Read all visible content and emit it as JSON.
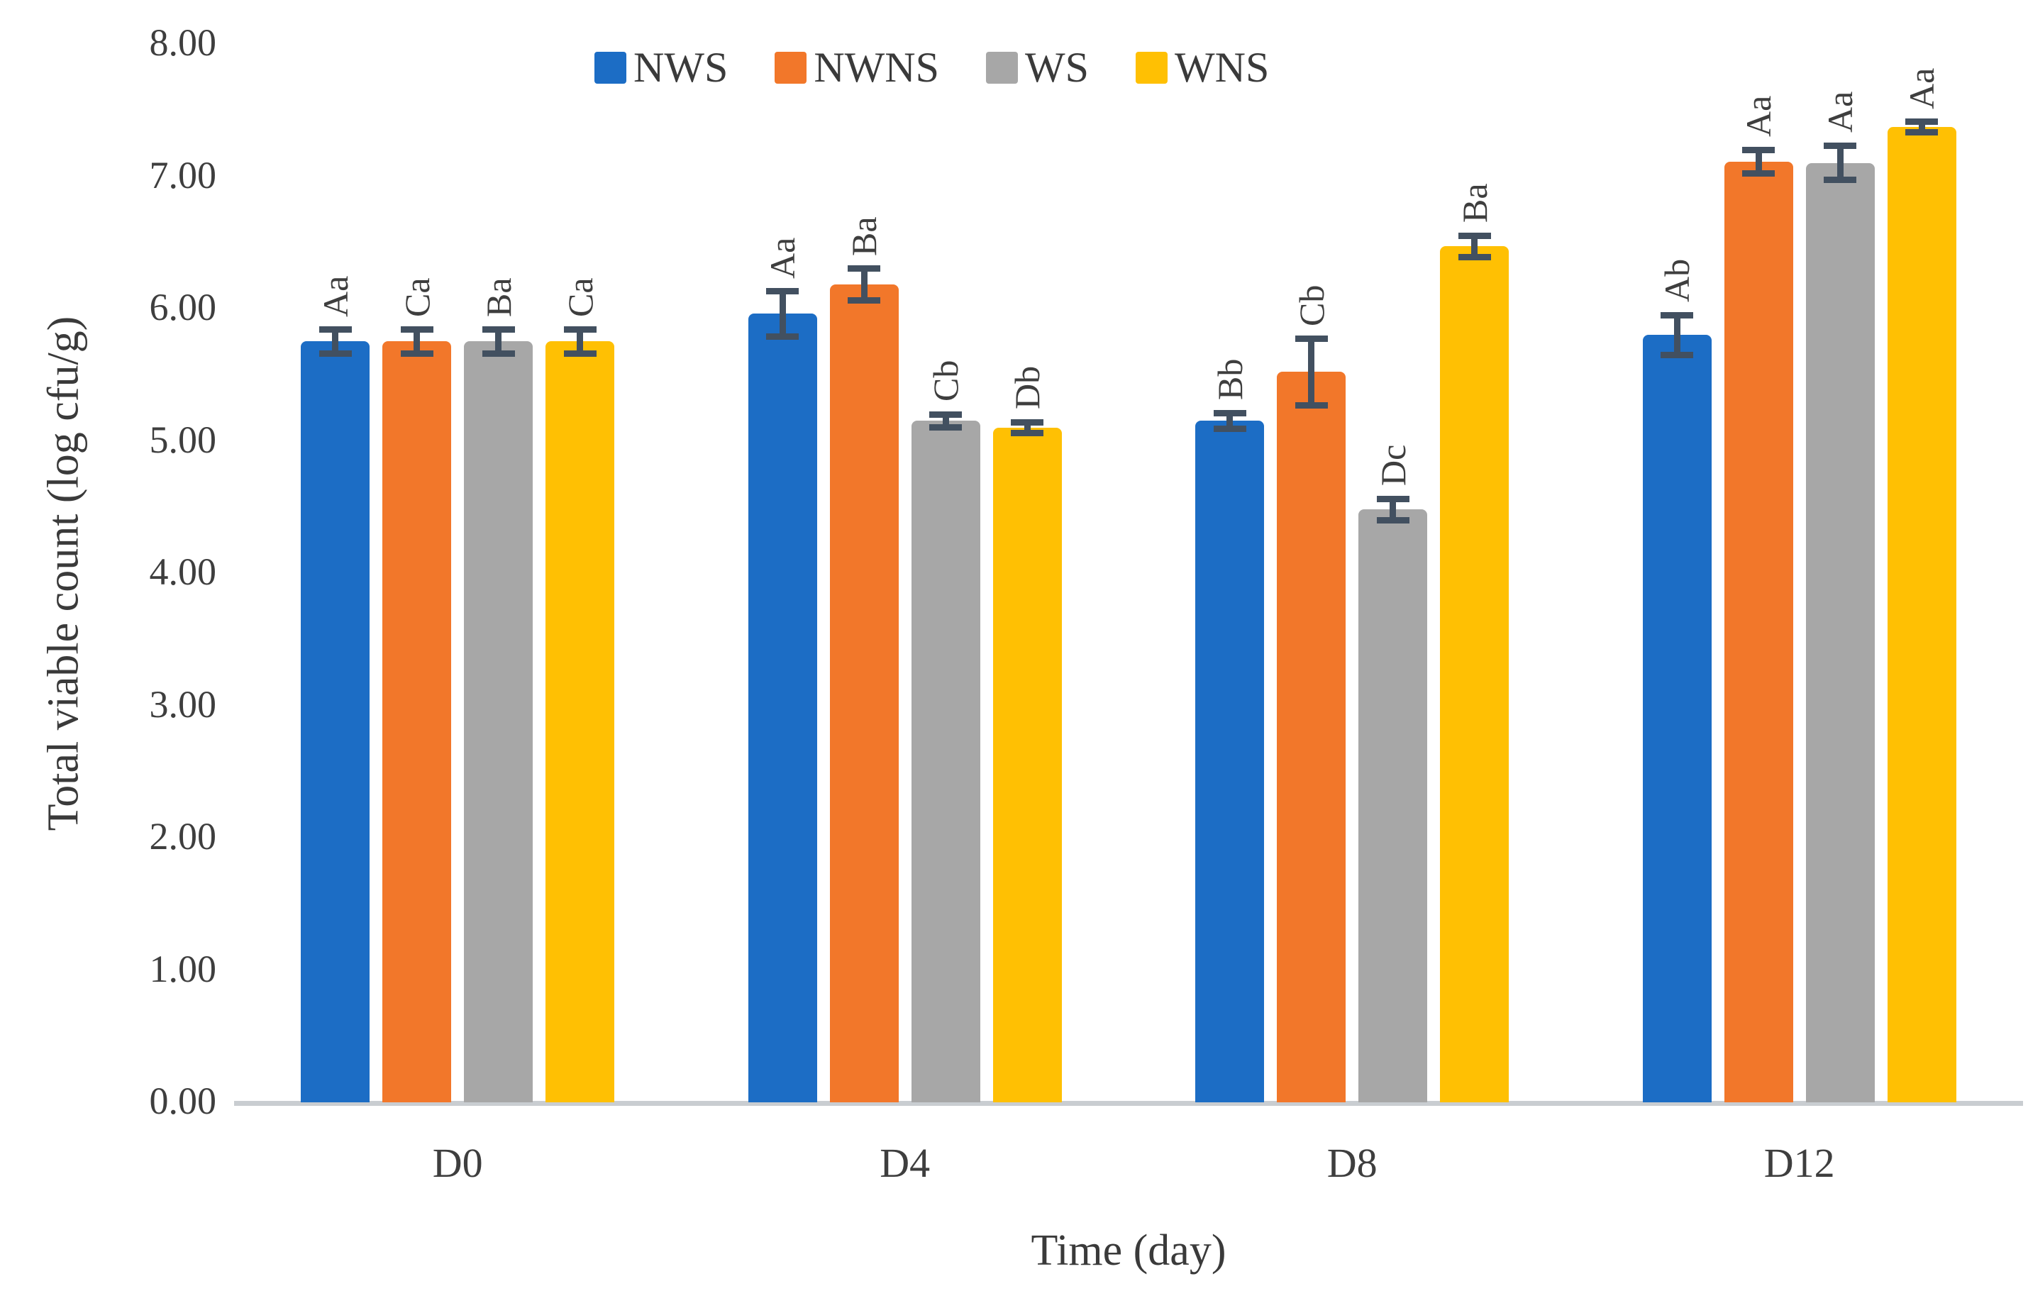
{
  "chart_data": {
    "type": "bar",
    "title": "",
    "xlabel": "Time (day)",
    "ylabel": "Total viable count (log cfu/g)",
    "ylim": [
      0,
      8
    ],
    "ytick_step": 1,
    "ytick_labels": [
      "0.00",
      "1.00",
      "2.00",
      "3.00",
      "4.00",
      "5.00",
      "6.00",
      "7.00",
      "8.00"
    ],
    "grid": false,
    "legend_position": "top",
    "categories": [
      "D0",
      "D4",
      "D8",
      "D12"
    ],
    "series": [
      {
        "name": "NWS",
        "color": "#1c6dc5",
        "values": [
          5.74,
          5.95,
          5.14,
          5.79
        ],
        "errors": [
          0.09,
          0.17,
          0.06,
          0.15
        ],
        "letters": [
          "Aa",
          "Aa",
          "Bb",
          "Ab"
        ]
      },
      {
        "name": "NWNS",
        "color": "#f2772a",
        "values": [
          5.74,
          6.17,
          5.51,
          7.1
        ],
        "errors": [
          0.09,
          0.12,
          0.25,
          0.09
        ],
        "letters": [
          "Ca",
          "Ba",
          "Cb",
          "Aa"
        ]
      },
      {
        "name": "WS",
        "color": "#a7a7a7",
        "values": [
          5.74,
          5.14,
          4.47,
          7.09
        ],
        "errors": [
          0.09,
          0.05,
          0.08,
          0.13
        ],
        "letters": [
          "Ba",
          "Cb",
          "Dc",
          "Aa"
        ]
      },
      {
        "name": "WNS",
        "color": "#ffc003",
        "values": [
          5.74,
          5.09,
          6.46,
          7.36
        ],
        "errors": [
          0.09,
          0.04,
          0.08,
          0.04
        ],
        "letters": [
          "Ca",
          "Db",
          "Ba",
          "Aa"
        ]
      }
    ],
    "error_bar_color": "#425060",
    "axis_line_color": "#c9cdd1"
  }
}
